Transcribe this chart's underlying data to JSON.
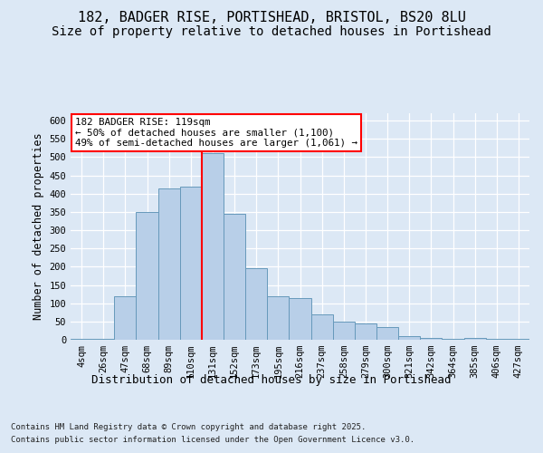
{
  "title_line1": "182, BADGER RISE, PORTISHEAD, BRISTOL, BS20 8LU",
  "title_line2": "Size of property relative to detached houses in Portishead",
  "xlabel": "Distribution of detached houses by size in Portishead",
  "ylabel": "Number of detached properties",
  "footer_line1": "Contains HM Land Registry data © Crown copyright and database right 2025.",
  "footer_line2": "Contains public sector information licensed under the Open Government Licence v3.0.",
  "categories": [
    "4sqm",
    "26sqm",
    "47sqm",
    "68sqm",
    "89sqm",
    "110sqm",
    "131sqm",
    "152sqm",
    "173sqm",
    "195sqm",
    "216sqm",
    "237sqm",
    "258sqm",
    "279sqm",
    "300sqm",
    "321sqm",
    "342sqm",
    "364sqm",
    "385sqm",
    "406sqm",
    "427sqm"
  ],
  "values": [
    2,
    3,
    120,
    350,
    415,
    420,
    510,
    345,
    195,
    120,
    115,
    70,
    50,
    45,
    35,
    10,
    4,
    2,
    4,
    2,
    2
  ],
  "bar_color": "#b8cfe8",
  "bar_edge_color": "#6699bb",
  "vline_index": 6,
  "annotation_text": "182 BADGER RISE: 119sqm\n← 50% of detached houses are smaller (1,100)\n49% of semi-detached houses are larger (1,061) →",
  "annotation_box_facecolor": "white",
  "annotation_box_edgecolor": "red",
  "ylim": [
    0,
    620
  ],
  "yticks": [
    0,
    50,
    100,
    150,
    200,
    250,
    300,
    350,
    400,
    450,
    500,
    550,
    600
  ],
  "background_color": "#dce8f5",
  "plot_background_color": "#dce8f5",
  "grid_color": "white",
  "title_fontsize": 11,
  "subtitle_fontsize": 10,
  "tick_fontsize": 7.5,
  "label_fontsize": 9,
  "ylabel_fontsize": 8.5,
  "footer_fontsize": 6.5
}
